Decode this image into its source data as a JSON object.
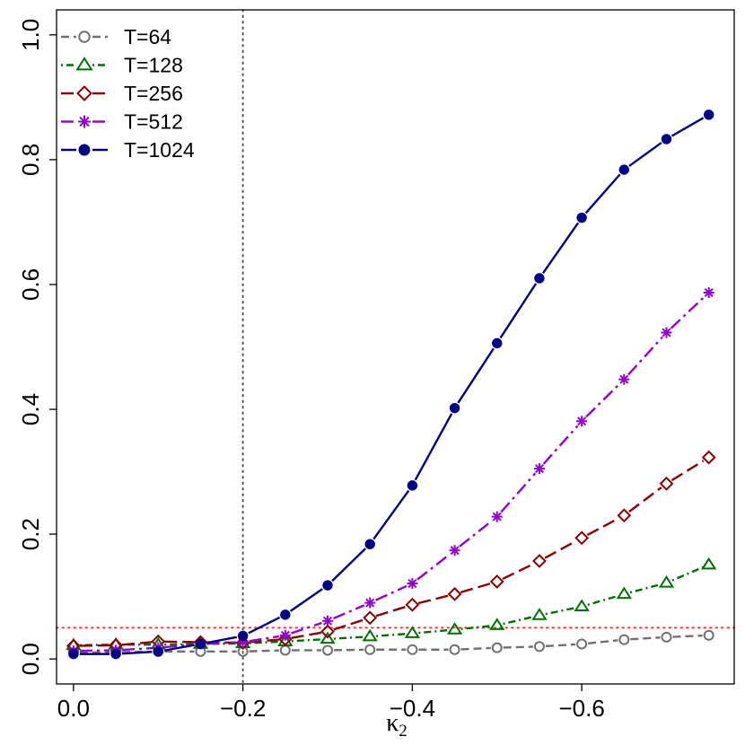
{
  "chart_data": {
    "type": "line",
    "title": "",
    "xlabel": "κ",
    "xlabel_sub": "2",
    "ylabel": "",
    "x": [
      0.0,
      -0.05,
      -0.1,
      -0.15,
      -0.2,
      -0.25,
      -0.3,
      -0.35,
      -0.4,
      -0.45,
      -0.5,
      -0.55,
      -0.6,
      -0.65,
      -0.7,
      -0.75
    ],
    "xlim": [
      0.02,
      -0.78
    ],
    "ylim": [
      -0.04,
      1.04
    ],
    "xticks": [
      0.0,
      -0.2,
      -0.4,
      -0.6
    ],
    "xtick_labels": [
      "0.0",
      "−0.2",
      "−0.4",
      "−0.6"
    ],
    "yticks": [
      0.0,
      0.2,
      0.4,
      0.6,
      0.8,
      1.0
    ],
    "ytick_labels": [
      "0.0",
      "0.2",
      "0.4",
      "0.6",
      "0.8",
      "1.0"
    ],
    "grid": false,
    "legend_position": "top-left",
    "reference_lines": [
      {
        "orientation": "vertical",
        "value": -0.2,
        "color": "#555555",
        "style": "dotted"
      },
      {
        "orientation": "horizontal",
        "value": 0.05,
        "color": "#ff3333",
        "style": "dotted"
      }
    ],
    "series": [
      {
        "name": "T=64",
        "color": "#707070",
        "marker": "open-circle",
        "dash": "dashed",
        "values": [
          0.01,
          0.011,
          0.012,
          0.012,
          0.012,
          0.014,
          0.014,
          0.015,
          0.015,
          0.015,
          0.018,
          0.02,
          0.024,
          0.031,
          0.035,
          0.038
        ]
      },
      {
        "name": "T=128",
        "color": "#007000",
        "marker": "open-triangle",
        "dash": "dot-dash",
        "values": [
          0.022,
          0.023,
          0.023,
          0.024,
          0.025,
          0.028,
          0.032,
          0.036,
          0.041,
          0.047,
          0.054,
          0.07,
          0.084,
          0.104,
          0.122,
          0.151
        ]
      },
      {
        "name": "T=256",
        "color": "#8b0000",
        "marker": "open-diamond",
        "dash": "long-dash",
        "values": [
          0.021,
          0.022,
          0.028,
          0.027,
          0.026,
          0.032,
          0.044,
          0.066,
          0.087,
          0.104,
          0.124,
          0.157,
          0.194,
          0.23,
          0.281,
          0.323
        ]
      },
      {
        "name": "T=512",
        "color": "#9400d3",
        "marker": "asterisk",
        "dash": "long-dot-dash",
        "values": [
          0.013,
          0.014,
          0.018,
          0.024,
          0.027,
          0.038,
          0.061,
          0.09,
          0.121,
          0.174,
          0.228,
          0.305,
          0.381,
          0.448,
          0.523,
          0.587
        ]
      },
      {
        "name": "T=1024",
        "color": "#00008b",
        "marker": "filled-circle",
        "dash": "solid",
        "values": [
          0.008,
          0.008,
          0.012,
          0.024,
          0.037,
          0.071,
          0.118,
          0.184,
          0.278,
          0.402,
          0.506,
          0.61,
          0.707,
          0.784,
          0.833,
          0.872
        ]
      }
    ]
  }
}
